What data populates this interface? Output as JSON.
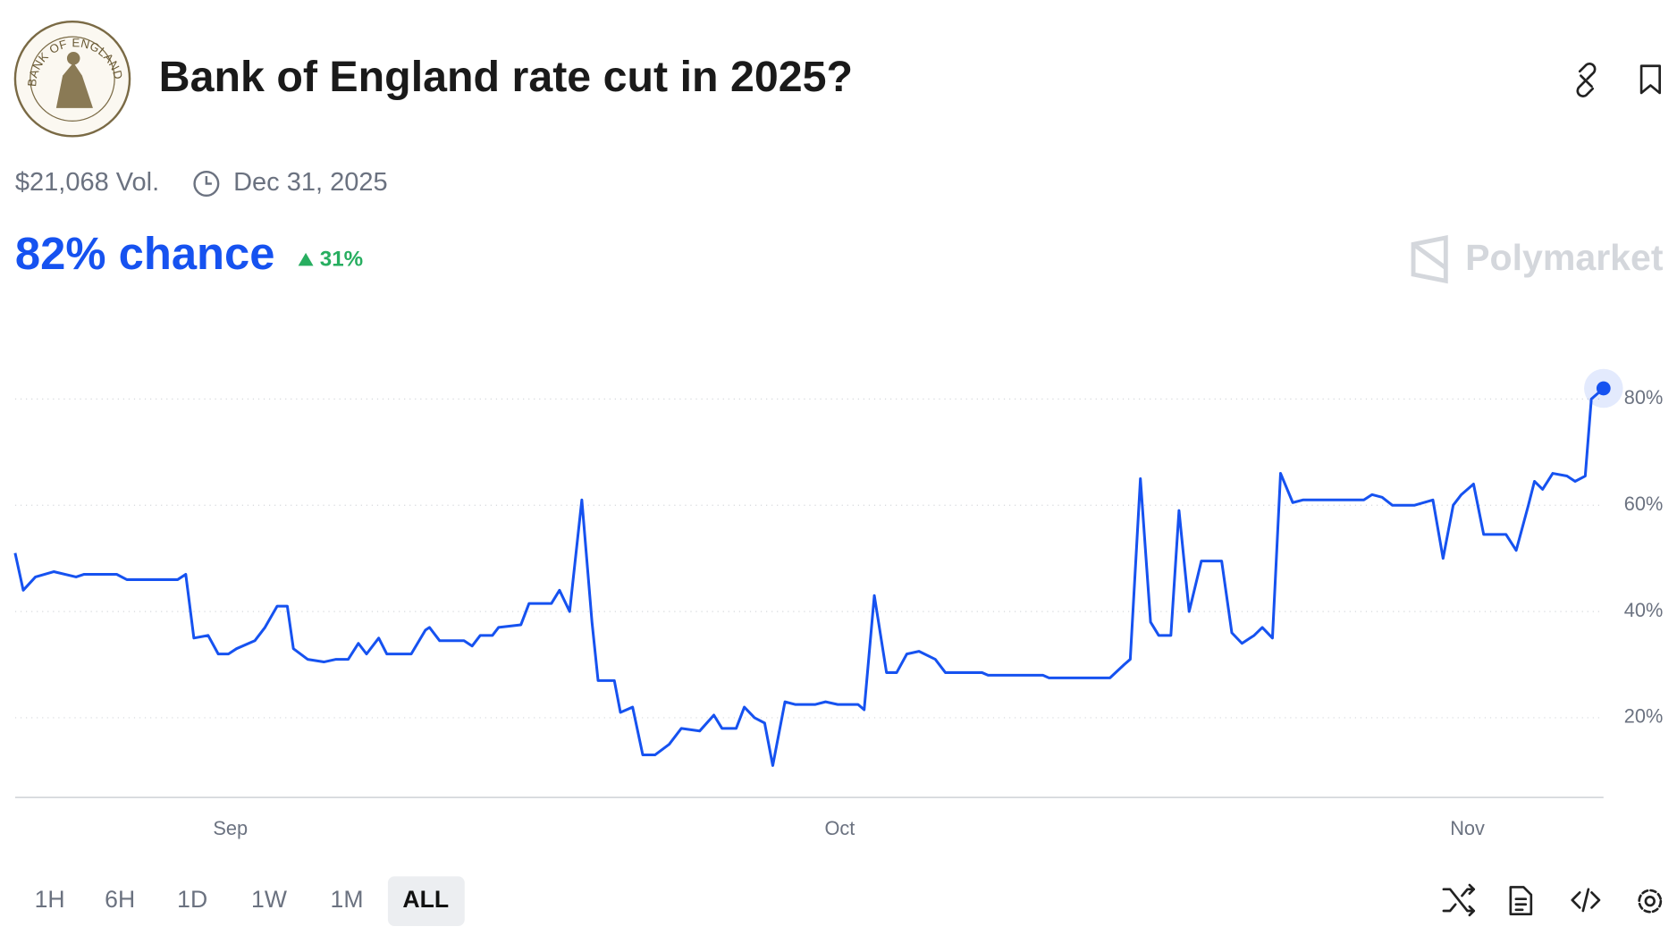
{
  "header": {
    "title": "Bank of England rate cut in 2025?",
    "logo_text": "BANK OF ENGLAND",
    "volume": "$21,068 Vol.",
    "end_date": "Dec 31, 2025",
    "chance": "82% chance",
    "change": "31%"
  },
  "brand": "Polymarket",
  "ranges": [
    "1H",
    "6H",
    "1D",
    "1W",
    "1M",
    "ALL"
  ],
  "chart_data": {
    "type": "line",
    "color": "#1652f0",
    "grid": true,
    "x": [
      0,
      0.4,
      1.0,
      1.9,
      3.0,
      3.4,
      5.0,
      5.5,
      8.0,
      8.4,
      8.8,
      9.5,
      10.0,
      10.5,
      10.9,
      11.8,
      12.3,
      12.9,
      13.4,
      13.7,
      14.4,
      15.2,
      15.8,
      16.4,
      16.9,
      17.3,
      17.9,
      18.3,
      19.5,
      20.2,
      20.4,
      20.9,
      22.1,
      22.5,
      22.9,
      23.5,
      23.8,
      24.9,
      25.3,
      26.4,
      26.8,
      27.3,
      27.9,
      28.4,
      28.7,
      29.5,
      29.8,
      30.4,
      30.9,
      31.5,
      32.2,
      32.8,
      33.7,
      34.4,
      34.8,
      35.5,
      35.9,
      36.4,
      36.9,
      37.3,
      37.9,
      38.4,
      39.4,
      39.9,
      40.5,
      41.5,
      41.8,
      42.3,
      42.9,
      43.4,
      43.9,
      44.5,
      45.3,
      45.8,
      47.6,
      47.9,
      50.6,
      50.9,
      53.9,
      54.6,
      54.9,
      55.4,
      55.9,
      56.3,
      56.9,
      57.3,
      57.8,
      58.4,
      59.4,
      59.9,
      60.4,
      61.0,
      61.4,
      61.9,
      62.3,
      62.9,
      63.4,
      66.4,
      66.8,
      67.3,
      67.8,
      68.9,
      69.8,
      70.3,
      70.8,
      71.2,
      71.8,
      72.3,
      73.4,
      73.9,
      74.5,
      74.8,
      75.2,
      75.7,
      76.4,
      76.8,
      77.3,
      77.6,
      78.2
    ],
    "values": [
      51,
      44,
      46.5,
      47.5,
      46.5,
      47,
      47,
      46,
      46,
      47,
      35,
      35.5,
      32,
      32,
      33,
      34.5,
      37,
      41,
      41,
      33,
      31,
      30.5,
      31,
      31,
      34,
      32,
      35,
      32,
      32,
      36.5,
      37,
      34.5,
      34.5,
      33.5,
      35.5,
      35.5,
      37,
      37.5,
      41.5,
      41.5,
      44,
      40,
      61,
      38,
      27,
      27,
      21,
      22,
      13,
      13,
      15,
      18,
      17.5,
      20.5,
      18,
      18,
      22,
      20,
      19,
      11,
      23,
      22.5,
      22.5,
      23,
      22.5,
      22.5,
      21.5,
      43,
      28.5,
      28.5,
      32,
      32.5,
      31,
      28.5,
      28.5,
      28,
      28,
      27.5,
      27.5,
      30,
      31,
      65,
      38,
      35.5,
      35.5,
      59,
      40,
      49.5,
      49.5,
      36,
      34,
      35.5,
      37,
      35,
      66,
      60.5,
      61,
      61,
      62,
      61.5,
      60,
      60,
      61,
      50,
      60,
      62,
      64,
      54.5,
      54.5,
      51.5,
      60,
      64.5,
      63,
      66,
      65.5,
      64.5,
      65.5,
      80,
      82
    ],
    "xlim": [
      0,
      78.2
    ],
    "xticks": [
      {
        "value": 10.6,
        "label": "Sep"
      },
      {
        "value": 40.6,
        "label": "Oct"
      },
      {
        "value": 71.5,
        "label": "Nov"
      }
    ],
    "ylim": [
      5,
      95
    ],
    "yticks": [
      {
        "value": 20,
        "label": "20%"
      },
      {
        "value": 40,
        "label": "40%"
      },
      {
        "value": 60,
        "label": "60%"
      },
      {
        "value": 80,
        "label": "80%"
      }
    ]
  }
}
